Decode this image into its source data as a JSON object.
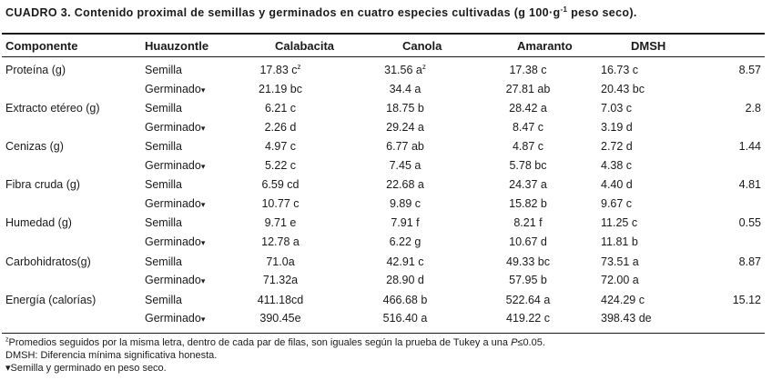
{
  "title": {
    "prefix": "CUADRO 3. Contenido proximal de semillas y germinados en cuatro especies cultivadas (g 100·g",
    "sup": "-1",
    "suffix": " peso seco)."
  },
  "headers": [
    "Componente",
    "Huauzontle",
    "Calabacita",
    "Canola",
    "Amaranto",
    "DMSH"
  ],
  "sup_mark": "z",
  "germ_mark": "▾",
  "rows": [
    {
      "component": "Proteína (g)",
      "dmsh": "8.57",
      "semilla": [
        "17.83 c",
        "31.56 a",
        "17.38 c",
        "16.73 c"
      ],
      "germinado": [
        "21.19 bc",
        "34.4 a",
        "27.81 ab",
        "20.43 bc"
      ]
    },
    {
      "component": "Extracto etéreo (g)",
      "dmsh": "2.8",
      "semilla": [
        "6.21 c",
        "18.75 b",
        "28.42 a",
        "7.03 c"
      ],
      "germinado": [
        "2.26 d",
        "29.24 a",
        "8.47 c",
        "3.19 d"
      ]
    },
    {
      "component": "Cenizas (g)",
      "dmsh": "1.44",
      "semilla": [
        "4.97 c",
        "6.77 ab",
        "4.87 c",
        "2.72 d"
      ],
      "germinado": [
        "5.22 c",
        "7.45 a",
        "5.78 bc",
        "4.38 c"
      ]
    },
    {
      "component": "Fibra cruda (g)",
      "dmsh": "4.81",
      "semilla": [
        "6.59 cd",
        "22.68 a",
        "24.37 a",
        "4.40 d"
      ],
      "germinado": [
        "10.77 c",
        "9.89 c",
        "15.82 b",
        "9.67 c"
      ]
    },
    {
      "component": "Humedad (g)",
      "dmsh": "0.55",
      "semilla": [
        "9.71 e",
        "7.91 f",
        "8.21 f",
        "11.25 c"
      ],
      "germinado": [
        "12.78 a",
        "6.22 g",
        "10.67 d",
        "11.81 b"
      ]
    },
    {
      "component": "Carbohidratos(g)",
      "dmsh": "8.87",
      "semilla": [
        "71.0a",
        "42.91 c",
        "49.33 bc",
        "73.51 a"
      ],
      "germinado": [
        "71.32a",
        "28.90 d",
        "57.95 b",
        "72.00 a"
      ]
    },
    {
      "component": "Energía (calorías)",
      "dmsh": "15.12",
      "semilla": [
        "411.18cd",
        "466.68 b",
        "522.64 a",
        "424.29 c"
      ],
      "germinado": [
        "390.45e",
        "516.40 a",
        "419.22 c",
        "398.43 de"
      ]
    }
  ],
  "labels": {
    "semilla": "Semilla",
    "germinado": "Germinado"
  },
  "footnotes": {
    "z_mark": "z",
    "z_text_a": "Promedios seguidos por la misma letra, dentro de cada par de filas, son iguales según la prueba de Tukey a una ",
    "z_text_p": "P",
    "z_text_b": "≤0.05.",
    "dmsh": "DMSH: Diferencia mínima significativa honesta.",
    "germ_mark": "▾",
    "germ_text": "Semilla y germinado en peso seco."
  }
}
